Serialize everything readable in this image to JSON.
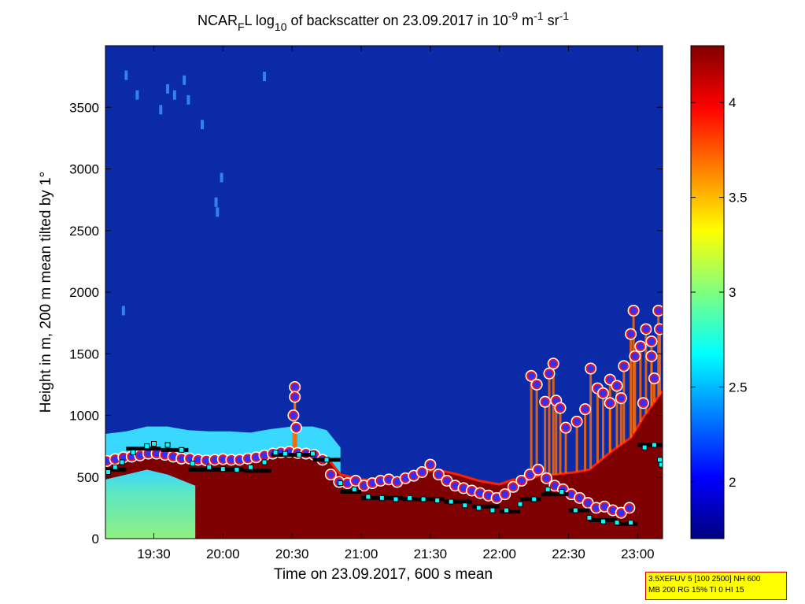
{
  "chart_data": {
    "type": "heatmap",
    "title": {
      "prefix": "NCAR",
      "sub_f": "F",
      "mid": "L log",
      "sub_10": "10",
      "mid2": " of backscatter on 23.09.2017 in 10",
      "sup_m9": "-9",
      "mid3": " m",
      "sup_m1a": "-1",
      "mid4": " sr",
      "sup_m1b": "-1"
    },
    "xlabel": "Time on 23.09.2017, 600 s mean",
    "ylabel": "Height in m, 200 m mean tilted by 1°",
    "xlim_hours": [
      19.15,
      23.18
    ],
    "ylim": [
      0,
      4000
    ],
    "x_ticks": [
      {
        "h": 19.5,
        "label": "19:30"
      },
      {
        "h": 20.0,
        "label": "20:00"
      },
      {
        "h": 20.5,
        "label": "20:30"
      },
      {
        "h": 21.0,
        "label": "21:00"
      },
      {
        "h": 21.5,
        "label": "21:30"
      },
      {
        "h": 22.0,
        "label": "22:00"
      },
      {
        "h": 22.5,
        "label": "22:30"
      },
      {
        "h": 23.0,
        "label": "23:00"
      }
    ],
    "y_ticks": [
      {
        "v": 0,
        "label": "0"
      },
      {
        "v": 500,
        "label": "500"
      },
      {
        "v": 1000,
        "label": "1000"
      },
      {
        "v": 1500,
        "label": "1500"
      },
      {
        "v": 2000,
        "label": "2000"
      },
      {
        "v": 2500,
        "label": "2500"
      },
      {
        "v": 3000,
        "label": "3000"
      },
      {
        "v": 3500,
        "label": "3500"
      }
    ],
    "colorbar": {
      "clim": [
        1.7,
        4.3
      ],
      "ticks": [
        {
          "v": 2,
          "label": "2"
        },
        {
          "v": 2.5,
          "label": "2.5"
        },
        {
          "v": 3,
          "label": "3"
        },
        {
          "v": 3.5,
          "label": "3.5"
        },
        {
          "v": 4,
          "label": "4"
        }
      ]
    },
    "colors": {
      "background": "#0a2aa8",
      "dark_red": "#7f0000",
      "aerosol_green": "#8ff080",
      "aerosol_cyan": "#38d8ff"
    },
    "boundary_top": [
      [
        19.15,
        630
      ],
      [
        19.3,
        650
      ],
      [
        19.45,
        690
      ],
      [
        19.6,
        690
      ],
      [
        19.75,
        660
      ],
      [
        19.9,
        650
      ],
      [
        20.05,
        650
      ],
      [
        20.2,
        640
      ],
      [
        20.35,
        670
      ],
      [
        20.5,
        690
      ],
      [
        20.65,
        690
      ],
      [
        20.75,
        660
      ],
      [
        20.85,
        520
      ],
      [
        21.0,
        480
      ],
      [
        21.15,
        470
      ],
      [
        21.3,
        490
      ],
      [
        21.45,
        540
      ],
      [
        21.55,
        560
      ],
      [
        21.7,
        520
      ],
      [
        21.85,
        470
      ],
      [
        22.0,
        440
      ],
      [
        22.1,
        480
      ],
      [
        22.2,
        470
      ],
      [
        22.3,
        520
      ],
      [
        22.4,
        520
      ],
      [
        22.55,
        540
      ],
      [
        22.65,
        560
      ],
      [
        22.8,
        700
      ],
      [
        22.95,
        820
      ],
      [
        23.05,
        1000
      ],
      [
        23.18,
        1200
      ]
    ],
    "blue_dots": [
      [
        19.16,
        630
      ],
      [
        19.22,
        645
      ],
      [
        19.28,
        660
      ],
      [
        19.34,
        665
      ],
      [
        19.4,
        675
      ],
      [
        19.46,
        690
      ],
      [
        19.52,
        690
      ],
      [
        19.58,
        680
      ],
      [
        19.64,
        665
      ],
      [
        19.7,
        650
      ],
      [
        19.76,
        650
      ],
      [
        19.82,
        640
      ],
      [
        19.88,
        635
      ],
      [
        19.94,
        640
      ],
      [
        20.0,
        645
      ],
      [
        20.06,
        640
      ],
      [
        20.12,
        640
      ],
      [
        20.18,
        650
      ],
      [
        20.24,
        660
      ],
      [
        20.3,
        675
      ],
      [
        20.36,
        690
      ],
      [
        20.42,
        700
      ],
      [
        20.48,
        705
      ],
      [
        20.54,
        695
      ],
      [
        20.6,
        690
      ],
      [
        20.66,
        680
      ],
      [
        20.72,
        640
      ],
      [
        20.78,
        520
      ],
      [
        20.84,
        460
      ],
      [
        20.9,
        450
      ],
      [
        20.96,
        470
      ],
      [
        21.02,
        430
      ],
      [
        21.08,
        450
      ],
      [
        21.14,
        470
      ],
      [
        21.2,
        480
      ],
      [
        21.26,
        460
      ],
      [
        21.32,
        490
      ],
      [
        21.38,
        510
      ],
      [
        21.44,
        540
      ],
      [
        21.5,
        600
      ],
      [
        21.56,
        520
      ],
      [
        21.62,
        470
      ],
      [
        21.68,
        430
      ],
      [
        21.74,
        410
      ],
      [
        21.8,
        390
      ],
      [
        21.86,
        370
      ],
      [
        21.92,
        350
      ],
      [
        21.98,
        330
      ],
      [
        22.04,
        360
      ],
      [
        22.1,
        420
      ],
      [
        22.16,
        470
      ],
      [
        22.22,
        520
      ],
      [
        22.28,
        560
      ],
      [
        22.34,
        490
      ],
      [
        22.4,
        430
      ],
      [
        22.46,
        400
      ],
      [
        22.52,
        360
      ],
      [
        22.58,
        330
      ],
      [
        22.64,
        290
      ],
      [
        22.7,
        250
      ],
      [
        22.76,
        260
      ],
      [
        22.82,
        230
      ],
      [
        22.88,
        210
      ],
      [
        22.94,
        250
      ],
      [
        20.52,
        1230
      ],
      [
        20.52,
        1150
      ],
      [
        20.51,
        1000
      ],
      [
        20.53,
        900
      ],
      [
        22.23,
        1320
      ],
      [
        22.27,
        1250
      ],
      [
        22.33,
        1110
      ],
      [
        22.36,
        1340
      ],
      [
        22.41,
        1120
      ],
      [
        22.44,
        1060
      ],
      [
        22.39,
        1420
      ],
      [
        22.48,
        900
      ],
      [
        22.56,
        950
      ],
      [
        22.62,
        1050
      ],
      [
        22.66,
        1380
      ],
      [
        22.71,
        1220
      ],
      [
        22.75,
        1180
      ],
      [
        22.8,
        1290
      ],
      [
        22.85,
        1240
      ],
      [
        22.9,
        1400
      ],
      [
        22.95,
        1660
      ],
      [
        22.98,
        1480
      ],
      [
        23.02,
        1560
      ],
      [
        23.06,
        1700
      ],
      [
        23.1,
        1600
      ],
      [
        23.15,
        1850
      ],
      [
        22.97,
        1850
      ],
      [
        23.04,
        1100
      ],
      [
        23.12,
        1300
      ],
      [
        23.16,
        1700
      ],
      [
        22.88,
        1140
      ],
      [
        22.8,
        1100
      ],
      [
        23.1,
        1480
      ]
    ],
    "black_segments": [
      [
        19.15,
        19.3,
        560
      ],
      [
        19.3,
        19.55,
        730
      ],
      [
        19.55,
        19.75,
        720
      ],
      [
        19.75,
        20.15,
        560
      ],
      [
        20.15,
        20.35,
        550
      ],
      [
        20.35,
        20.65,
        680
      ],
      [
        20.65,
        20.85,
        640
      ],
      [
        20.85,
        21.0,
        380
      ],
      [
        21.0,
        21.3,
        330
      ],
      [
        21.3,
        21.6,
        320
      ],
      [
        21.6,
        21.8,
        300
      ],
      [
        21.8,
        22.0,
        260
      ],
      [
        22.0,
        22.15,
        220
      ],
      [
        22.15,
        22.3,
        320
      ],
      [
        22.3,
        22.5,
        360
      ],
      [
        22.5,
        22.65,
        230
      ],
      [
        22.65,
        22.85,
        150
      ],
      [
        22.85,
        23.0,
        120
      ],
      [
        23.0,
        23.18,
        760
      ]
    ],
    "cyan_squares": [
      [
        19.17,
        540
      ],
      [
        19.22,
        580
      ],
      [
        19.27,
        620
      ],
      [
        19.35,
        700
      ],
      [
        19.45,
        750
      ],
      [
        19.5,
        770
      ],
      [
        19.6,
        760
      ],
      [
        19.7,
        720
      ],
      [
        19.78,
        610
      ],
      [
        19.9,
        580
      ],
      [
        20.0,
        565
      ],
      [
        20.1,
        560
      ],
      [
        20.2,
        580
      ],
      [
        20.3,
        620
      ],
      [
        20.38,
        700
      ],
      [
        20.45,
        690
      ],
      [
        20.55,
        680
      ],
      [
        20.65,
        690
      ],
      [
        20.75,
        640
      ],
      [
        20.85,
        450
      ],
      [
        20.95,
        400
      ],
      [
        21.05,
        340
      ],
      [
        21.15,
        330
      ],
      [
        21.25,
        320
      ],
      [
        21.35,
        330
      ],
      [
        21.45,
        320
      ],
      [
        21.55,
        310
      ],
      [
        21.65,
        300
      ],
      [
        21.75,
        270
      ],
      [
        21.85,
        250
      ],
      [
        21.95,
        230
      ],
      [
        22.05,
        230
      ],
      [
        22.15,
        280
      ],
      [
        22.25,
        320
      ],
      [
        22.35,
        400
      ],
      [
        22.45,
        380
      ],
      [
        22.55,
        230
      ],
      [
        22.65,
        170
      ],
      [
        22.75,
        140
      ],
      [
        22.85,
        130
      ],
      [
        22.95,
        130
      ],
      [
        23.05,
        740
      ],
      [
        23.12,
        760
      ],
      [
        23.17,
        600
      ],
      [
        23.16,
        640
      ]
    ],
    "dust_columns": [
      [
        19.75,
        3560
      ],
      [
        19.72,
        3720
      ],
      [
        19.6,
        3650
      ],
      [
        19.65,
        3600
      ],
      [
        19.55,
        3480
      ],
      [
        19.3,
        3760
      ],
      [
        19.38,
        3600
      ],
      [
        20.3,
        3750
      ],
      [
        19.85,
        3360
      ],
      [
        19.99,
        2930
      ],
      [
        19.95,
        2730
      ],
      [
        19.96,
        2650
      ],
      [
        19.28,
        1850
      ]
    ]
  },
  "info_box": {
    "line1": "3.5XEFUV 5 [100 2500] NH 600",
    "line2": "MB 200 RG 15% TI 0 HI 15"
  }
}
